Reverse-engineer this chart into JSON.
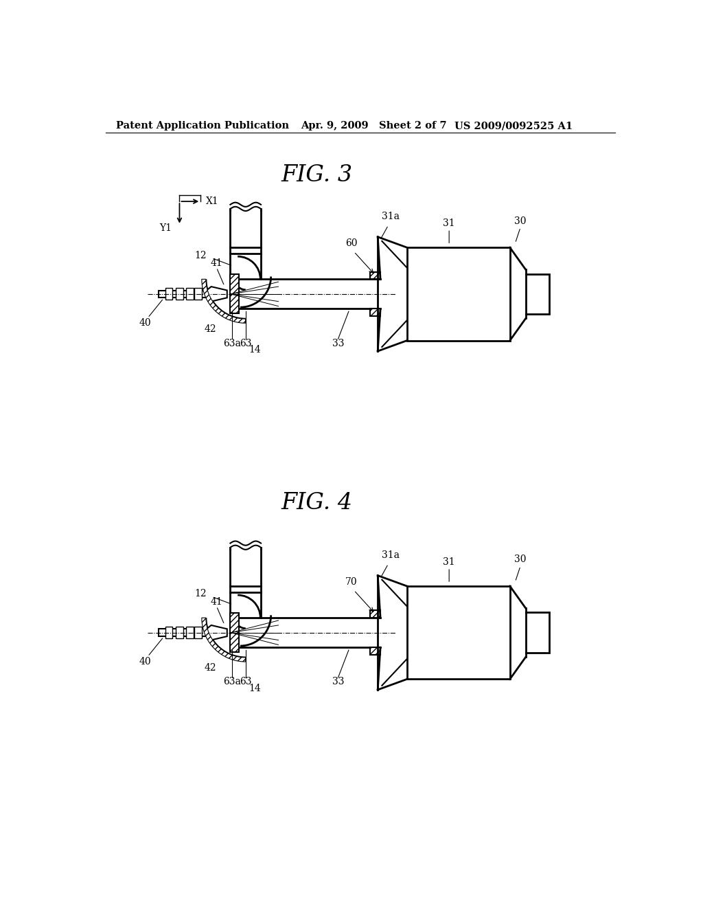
{
  "bg_color": "#ffffff",
  "header_left": "Patent Application Publication",
  "header_mid": "Apr. 9, 2009   Sheet 2 of 7",
  "header_right": "US 2009/0092525 A1",
  "fig3_title": "FIG. 3",
  "fig4_title": "FIG. 4",
  "line_color": "#000000",
  "label_fontsize": 10,
  "title_fontsize": 24,
  "header_fontsize": 10.5
}
